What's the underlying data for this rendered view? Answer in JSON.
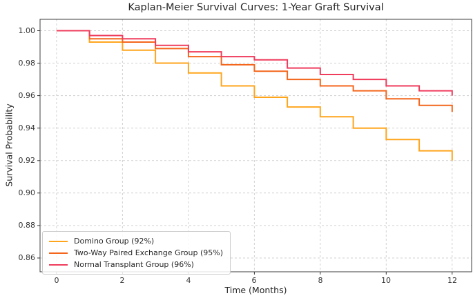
{
  "chart_data": {
    "type": "line",
    "subtype": "kaplan-meier-step",
    "title": "Kaplan-Meier Survival Curves: 1-Year Graft Survival",
    "xlabel": "Time (Months)",
    "ylabel": "Survival Probability",
    "xlim": [
      -0.5,
      12.59
    ],
    "ylim": [
      0.8515,
      1.007
    ],
    "x_ticks": [
      0,
      2,
      4,
      6,
      8,
      10,
      12
    ],
    "x_tick_labels": [
      "0",
      "2",
      "4",
      "6",
      "8",
      "10",
      "12"
    ],
    "y_ticks": [
      0.86,
      0.88,
      0.9,
      0.92,
      0.94,
      0.96,
      0.98,
      1.0
    ],
    "y_tick_labels": [
      "0.86",
      "0.88",
      "0.90",
      "0.92",
      "0.94",
      "0.96",
      "0.98",
      "1.00"
    ],
    "grid": {
      "on": true,
      "linestyle": "dashed",
      "color": "#d1d1d1"
    },
    "legend_position": "lower-left",
    "step_months": [
      0,
      1,
      2,
      3,
      4,
      5,
      6,
      7,
      8,
      9,
      10,
      11,
      12
    ],
    "series": [
      {
        "name": "Domino Group (92%)",
        "color": "#FFA51C",
        "final_survival": 0.92,
        "values": [
          1.0,
          0.993,
          0.988,
          0.98,
          0.974,
          0.966,
          0.959,
          0.953,
          0.947,
          0.94,
          0.933,
          0.926,
          0.92
        ]
      },
      {
        "name": "Two-Way Paired Exchange Group (95%)",
        "color": "#F4661C",
        "final_survival": 0.95,
        "values": [
          1.0,
          0.995,
          0.993,
          0.989,
          0.984,
          0.979,
          0.975,
          0.97,
          0.966,
          0.963,
          0.958,
          0.954,
          0.95
        ]
      },
      {
        "name": "Normal Transplant Group (96%)",
        "color": "#EF3B5C",
        "final_survival": 0.96,
        "values": [
          1.0,
          0.997,
          0.995,
          0.991,
          0.987,
          0.984,
          0.982,
          0.977,
          0.973,
          0.97,
          0.966,
          0.963,
          0.96
        ]
      }
    ],
    "colors": {
      "spine": "#3c3c3c",
      "tick": "#333333",
      "text": "#262626",
      "background": "#ffffff"
    }
  }
}
